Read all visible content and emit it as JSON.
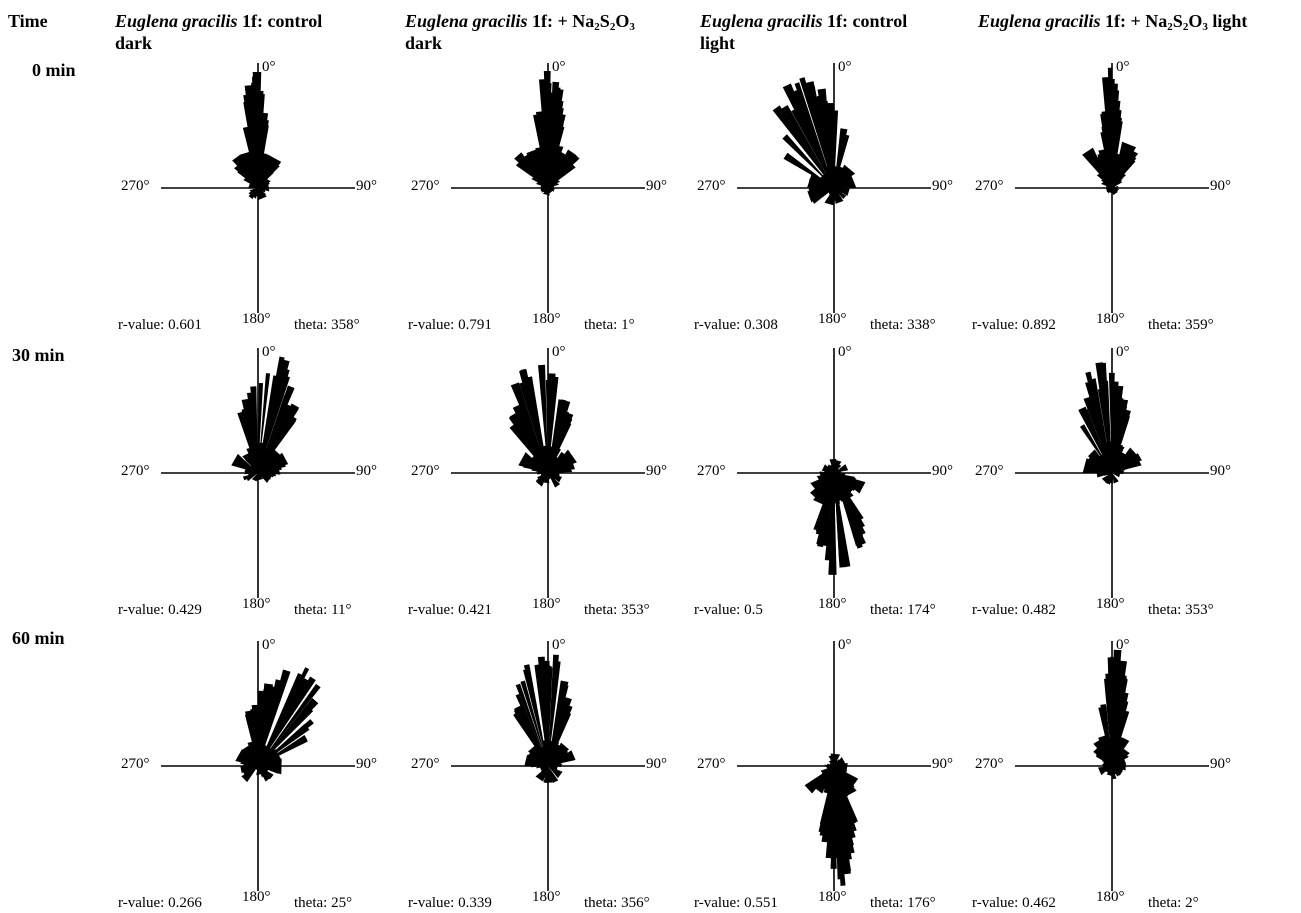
{
  "headers": {
    "time": "Time",
    "columns": [
      {
        "species": "Euglena gracilis",
        "strain": "1f:",
        "treatment": "control",
        "line2": "dark"
      },
      {
        "species": "Euglena gracilis",
        "strain": "1f:",
        "treatment": "+ Na2S2O3",
        "line2": "dark"
      },
      {
        "species": "Euglena gracilis",
        "strain": "1f:",
        "treatment": "control",
        "line2": "light"
      },
      {
        "species": "Euglena gracilis",
        "strain": "1f:",
        "treatment": "+ Na2S2O3 light",
        "line2": ""
      }
    ]
  },
  "rows": [
    "0 min",
    "30 min",
    "60 min"
  ],
  "axis_labels": {
    "top": "0°",
    "right": "90°",
    "bottom": "180°",
    "left": "270°"
  },
  "chart_data": [
    {
      "type": "rose",
      "time": "0 min",
      "condition": "control dark",
      "r_label": "r-value: 0.601",
      "theta_label": "theta: 358°",
      "r_value": 0.601,
      "theta_deg": 358,
      "spread_deg": 8,
      "petal_length": 0.97
    },
    {
      "type": "rose",
      "time": "0 min",
      "condition": "+ Na2S2O3 dark",
      "r_label": "r-value: 0.791",
      "theta_label": "theta: 1°",
      "r_value": 0.791,
      "theta_deg": 1,
      "spread_deg": 10,
      "petal_length": 0.98
    },
    {
      "type": "rose",
      "time": "0 min",
      "condition": "control light",
      "r_label": "r-value: 0.308",
      "theta_label": "theta: 338°",
      "r_value": 0.308,
      "theta_deg": 338,
      "spread_deg": 30,
      "petal_length": 0.95
    },
    {
      "type": "rose",
      "time": "0 min",
      "condition": "+ Na2S2O3 light",
      "r_label": "r-value: 0.892",
      "theta_label": "theta: 359°",
      "r_value": 0.892,
      "theta_deg": 359,
      "spread_deg": 6,
      "petal_length": 0.97
    },
    {
      "type": "rose",
      "time": "30 min",
      "condition": "control dark",
      "r_label": "r-value: 0.429",
      "theta_label": "theta: 11°",
      "r_value": 0.429,
      "theta_deg": 11,
      "spread_deg": 25,
      "petal_length": 0.95
    },
    {
      "type": "rose",
      "time": "30 min",
      "condition": "+ Na2S2O3 dark",
      "r_label": "r-value: 0.421",
      "theta_label": "theta: 353°",
      "r_value": 0.421,
      "theta_deg": 353,
      "spread_deg": 25,
      "petal_length": 0.97
    },
    {
      "type": "rose",
      "time": "30 min",
      "condition": "control light",
      "r_label": "r-value: 0.5",
      "theta_label": "theta: 174°",
      "r_value": 0.5,
      "theta_deg": 174,
      "spread_deg": 20,
      "petal_length": 0.93
    },
    {
      "type": "rose",
      "time": "30 min",
      "condition": "+ Na2S2O3 light",
      "r_label": "r-value: 0.482",
      "theta_label": "theta: 353°",
      "r_value": 0.482,
      "theta_deg": 353,
      "spread_deg": 22,
      "petal_length": 0.9
    },
    {
      "type": "rose",
      "time": "60 min",
      "condition": "control dark",
      "r_label": "r-value: 0.266",
      "theta_label": "theta: 25°",
      "r_value": 0.266,
      "theta_deg": 25,
      "spread_deg": 30,
      "petal_length": 0.95
    },
    {
      "type": "rose",
      "time": "60 min",
      "condition": "+ Na2S2O3 dark",
      "r_label": "r-value: 0.339",
      "theta_label": "theta: 356°",
      "r_value": 0.339,
      "theta_deg": 356,
      "spread_deg": 25,
      "petal_length": 0.97
    },
    {
      "type": "rose",
      "time": "60 min",
      "condition": "control light",
      "r_label": "r-value: 0.551",
      "theta_label": "theta: 176°",
      "r_value": 0.551,
      "theta_deg": 176,
      "spread_deg": 14,
      "petal_length": 0.97
    },
    {
      "type": "rose",
      "time": "60 min",
      "condition": "+ Na2S2O3 light",
      "r_label": "r-value: 0.462",
      "theta_label": "theta: 2°",
      "r_value": 0.462,
      "theta_deg": 2,
      "spread_deg": 10,
      "petal_length": 0.95
    }
  ]
}
